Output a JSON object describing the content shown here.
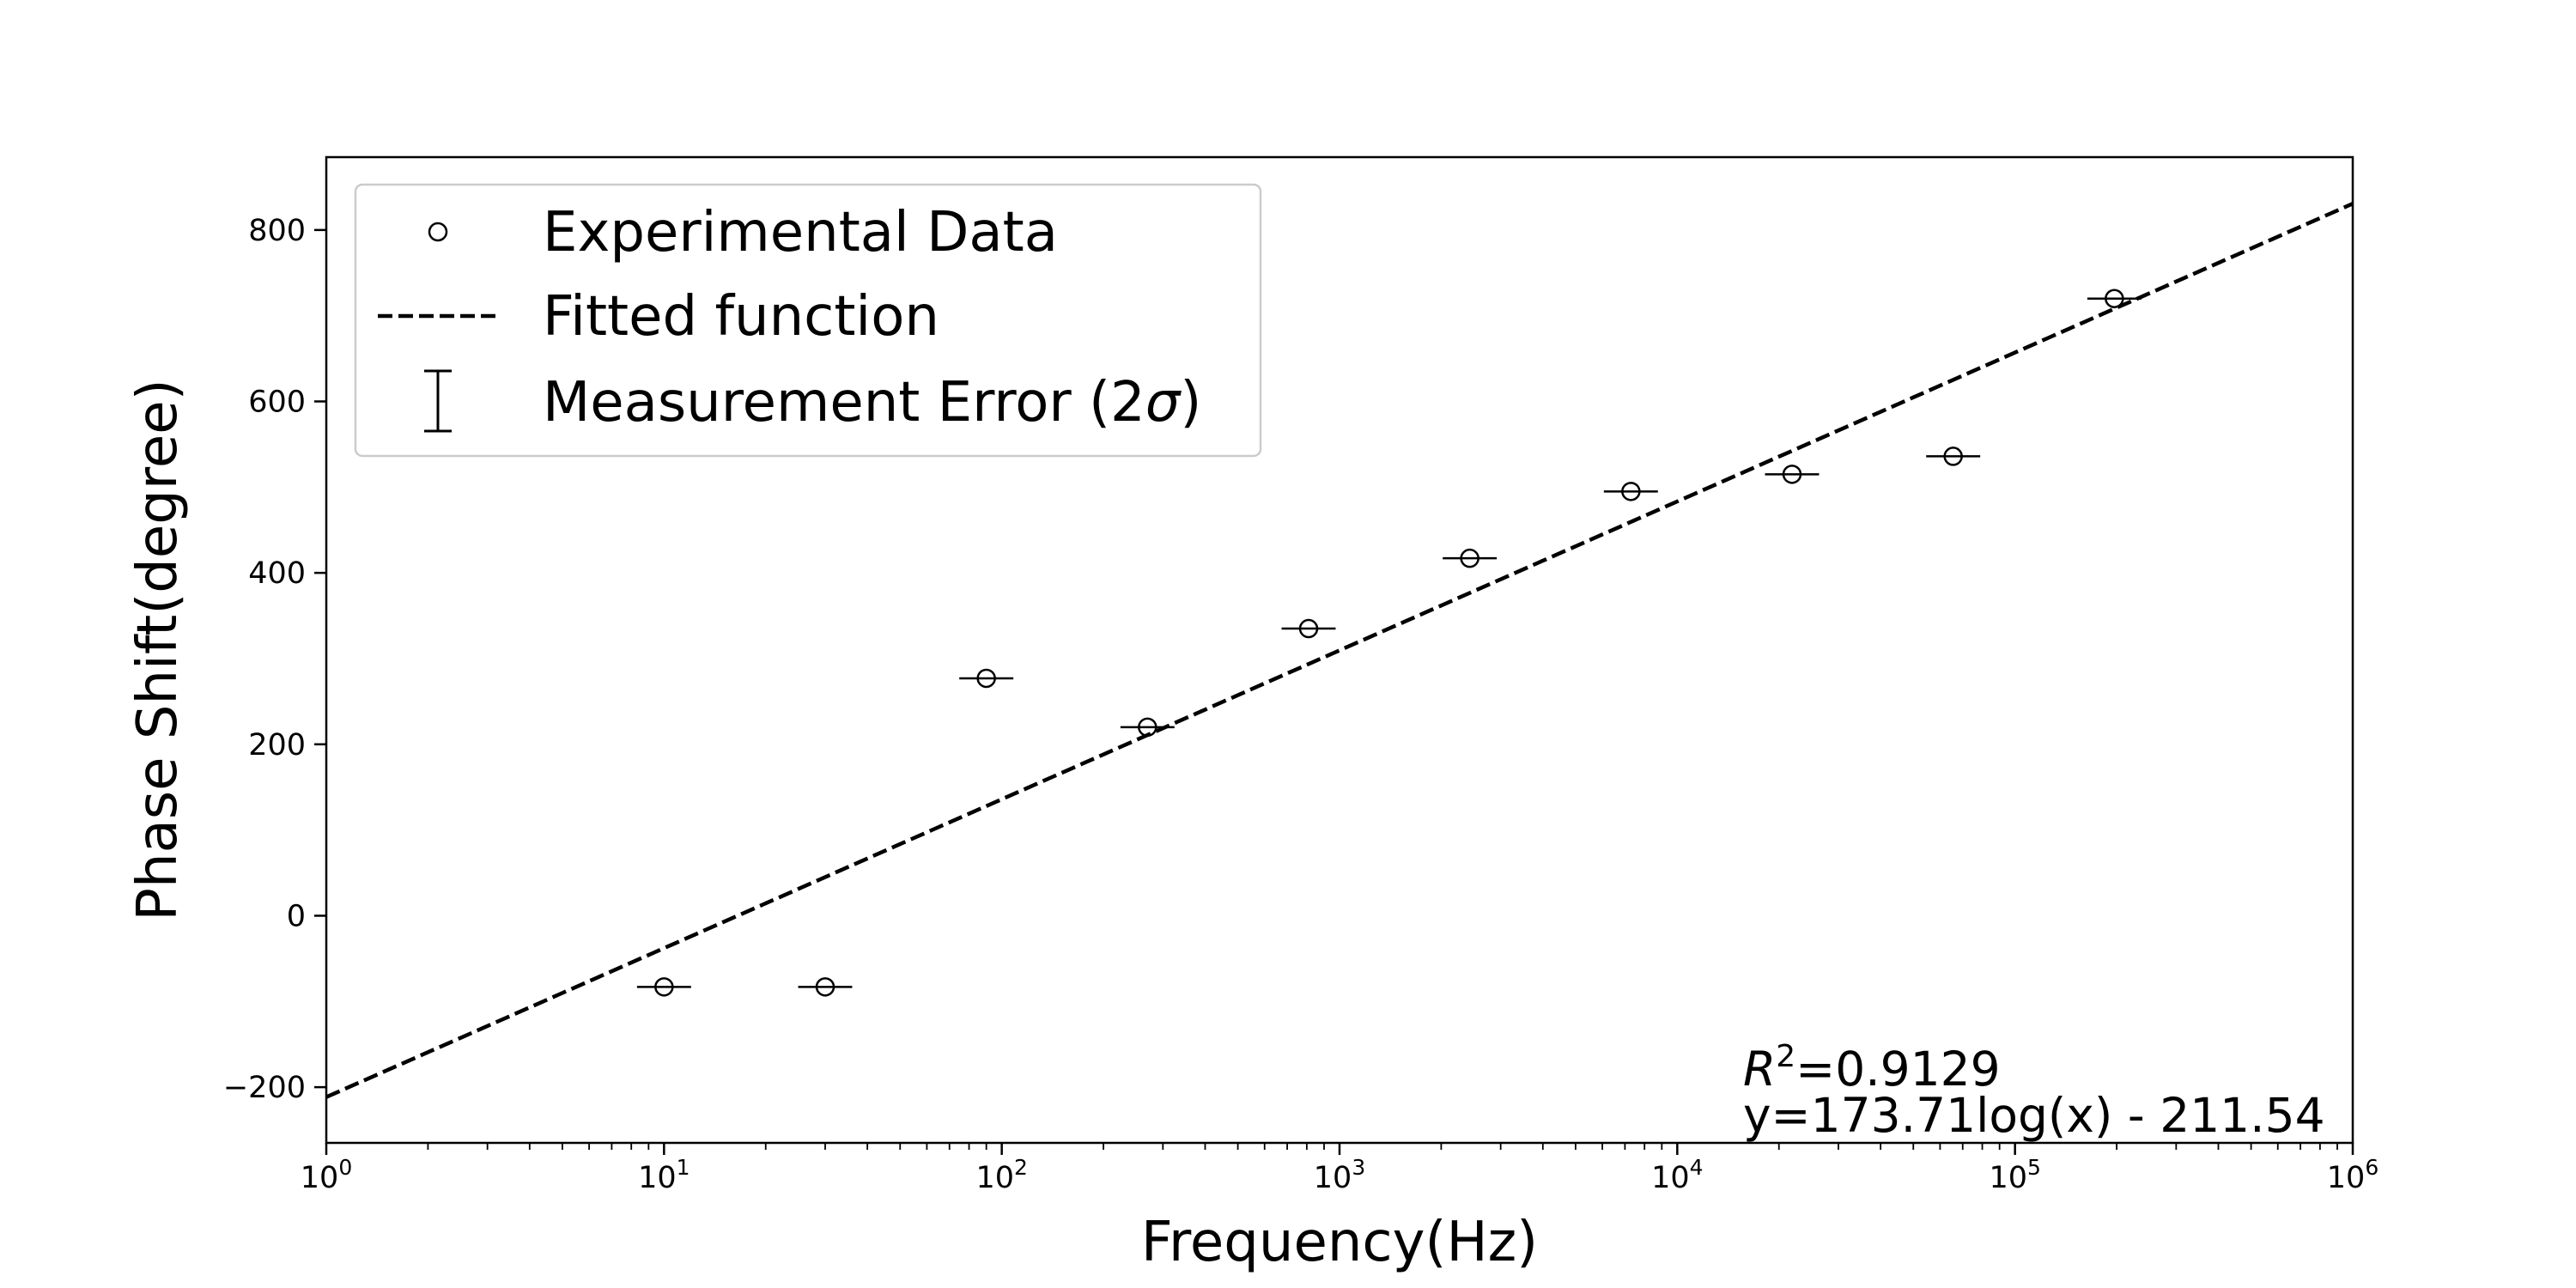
{
  "chart_data": {
    "type": "scatter",
    "title": "",
    "xlabel": "Frequency(Hz)",
    "ylabel": "Phase Shift(degree)",
    "x_scale": "log",
    "xlim": [
      1,
      1000000
    ],
    "ylim": [
      -265,
      885
    ],
    "x_ticks": [
      {
        "value": 1,
        "base": "10",
        "exp": "0"
      },
      {
        "value": 10,
        "base": "10",
        "exp": "1"
      },
      {
        "value": 100,
        "base": "10",
        "exp": "2"
      },
      {
        "value": 1000,
        "base": "10",
        "exp": "3"
      },
      {
        "value": 10000,
        "base": "10",
        "exp": "4"
      },
      {
        "value": 100000,
        "base": "10",
        "exp": "5"
      },
      {
        "value": 1000000,
        "base": "10",
        "exp": "6"
      }
    ],
    "y_ticks": [
      {
        "value": -200,
        "label": "−200"
      },
      {
        "value": 0,
        "label": "0"
      },
      {
        "value": 200,
        "label": "200"
      },
      {
        "value": 400,
        "label": "400"
      },
      {
        "value": 600,
        "label": "600"
      },
      {
        "value": 800,
        "label": "800"
      }
    ],
    "grid": false,
    "legend_position": "top-left",
    "series": [
      {
        "name": "Experimental Data",
        "marker": "open-circle",
        "x": [
          10,
          30,
          90,
          270,
          810,
          2430,
          7290,
          21870,
          65610,
          196830
        ],
        "y": [
          -83,
          -83,
          277,
          220,
          335,
          417,
          495,
          515,
          536,
          720
        ],
        "x_error": 0.08
      },
      {
        "name": "Fitted function",
        "style": "dashed",
        "slope": 173.71,
        "intercept": -211.54
      }
    ],
    "legend": [
      {
        "key": "data",
        "label": "Experimental Data"
      },
      {
        "key": "fit",
        "label": "Fitted function"
      },
      {
        "key": "err",
        "label_prefix": "Measurement Error (2",
        "label_symbol": "σ",
        "label_suffix": ")"
      }
    ],
    "annotations": {
      "r2_symbol": "R",
      "r2_sup": "2",
      "r2_value": "=0.9129",
      "equation": "y=173.71log(x) - 211.54"
    }
  }
}
